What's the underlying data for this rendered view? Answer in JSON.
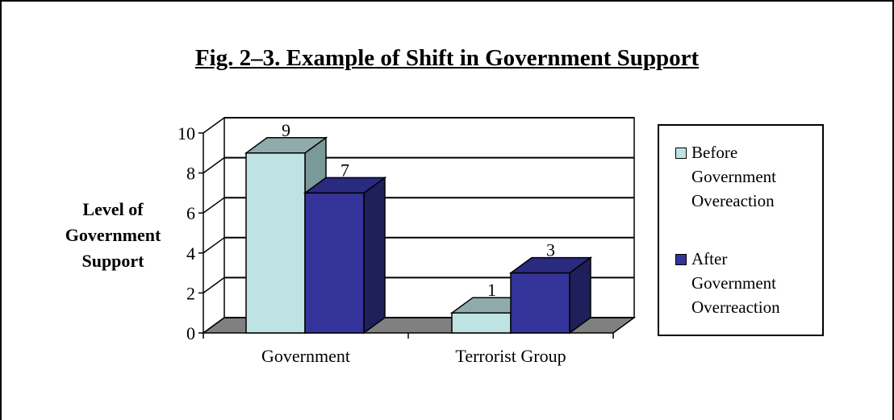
{
  "chart_data": {
    "type": "bar",
    "title": "Fig. 2–3. Example of Shift in Government Support",
    "ylabel": "Level of Government Support",
    "xlabel": "",
    "categories": [
      "Government",
      "Terrorist Group"
    ],
    "series": [
      {
        "name": "Before Government Overeaction",
        "values": [
          9,
          1
        ],
        "color": "#bfe3e3",
        "topColor": "#8fabab",
        "sideColor": "#7a9999"
      },
      {
        "name": "After Government Overreaction",
        "values": [
          7,
          3
        ],
        "color": "#333399",
        "topColor": "#2a2a80",
        "sideColor": "#1f1f5c"
      }
    ],
    "ylim": [
      0,
      10
    ],
    "yticks": [
      "0",
      "2",
      "4",
      "6",
      "8",
      "10"
    ],
    "data_labels": [
      "9",
      "1",
      "7",
      "3"
    ],
    "grid": true,
    "legend_position": "right"
  },
  "legend": {
    "before_lines": [
      "Before",
      "Government",
      "Overeaction"
    ],
    "after_lines": [
      "After",
      "Government",
      "Overreaction"
    ]
  }
}
